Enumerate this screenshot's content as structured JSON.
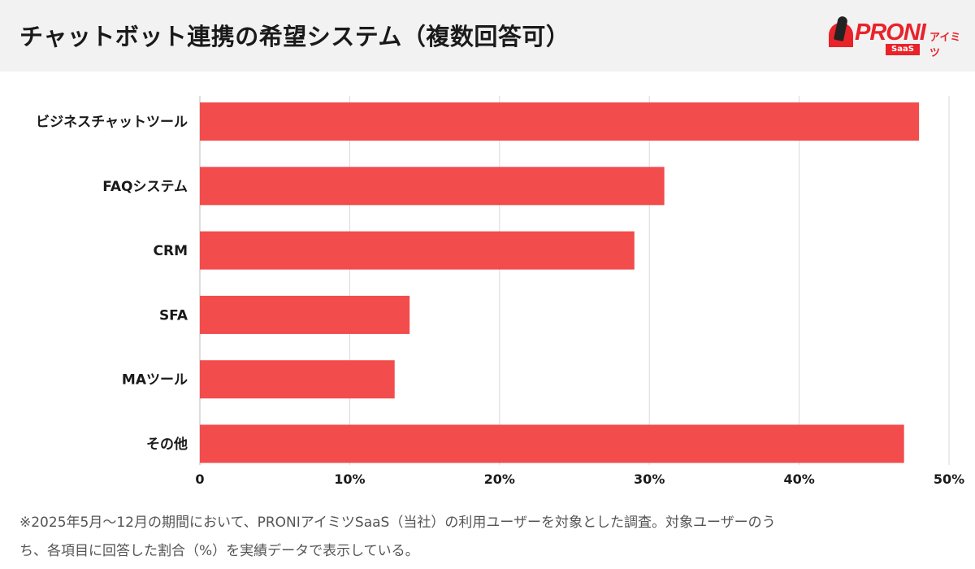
{
  "header": {
    "title": "チャットボット連携の希望システム（複数回答可）"
  },
  "logo": {
    "brand": "PRONI",
    "kana": "アイミツ",
    "badge": "SaaS"
  },
  "chart_data": {
    "type": "bar",
    "orientation": "horizontal",
    "title": "チャットボット連携の希望システム（複数回答可）",
    "categories": [
      "ビジネスチャットツール",
      "FAQシステム",
      "CRM",
      "SFA",
      "MAツール",
      "その他"
    ],
    "values": [
      48,
      31,
      29,
      14,
      13,
      47
    ],
    "unit": "%",
    "xlim": [
      0,
      50
    ],
    "ticks": [
      0,
      10,
      20,
      30,
      40,
      50
    ],
    "tick_labels": [
      "0",
      "10%",
      "20%",
      "30%",
      "40%",
      "50%"
    ],
    "grid": true,
    "bar_color": "#f24c4c"
  },
  "footnote": {
    "line1": "※2025年5月〜12月の期間において、PRONIアイミツSaaS（当社）の利用ユーザーを対象とした調査。対象ユーザーのう",
    "line2": "ち、各項目に回答した割合（%）を実績データで表示している。"
  }
}
